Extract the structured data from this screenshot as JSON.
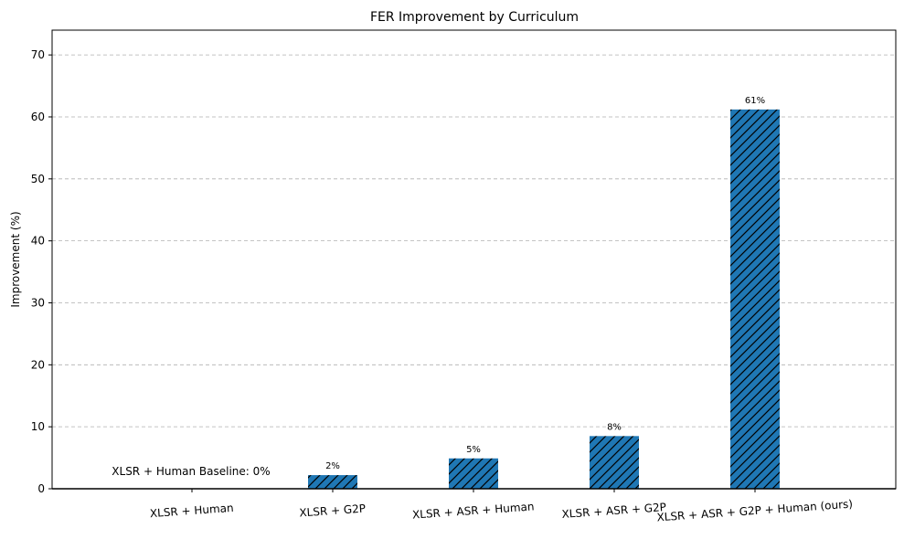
{
  "chart_data": {
    "type": "bar",
    "title": "FER Improvement by Curriculum",
    "xlabel": "",
    "ylabel": "Improvement (%)",
    "ylim": [
      0,
      74
    ],
    "yticks": [
      0,
      10,
      20,
      30,
      40,
      50,
      60,
      70
    ],
    "grid": "y-dashed",
    "categories": [
      "XLSR + Human",
      "XLSR + G2P",
      "XLSR + ASR + Human",
      "XLSR + ASR + G2P",
      "XLSR + ASR + G2P + Human (ours)"
    ],
    "values": [
      0,
      2.2,
      4.9,
      8.5,
      61.2
    ],
    "bar_labels": [
      "",
      "2%",
      "5%",
      "8%",
      "61%"
    ],
    "bar_color": "#1f77b4",
    "bar_hatch": "///",
    "annotation": "XLSR + Human Baseline: 0%",
    "xtick_rotation_deg": -4
  }
}
